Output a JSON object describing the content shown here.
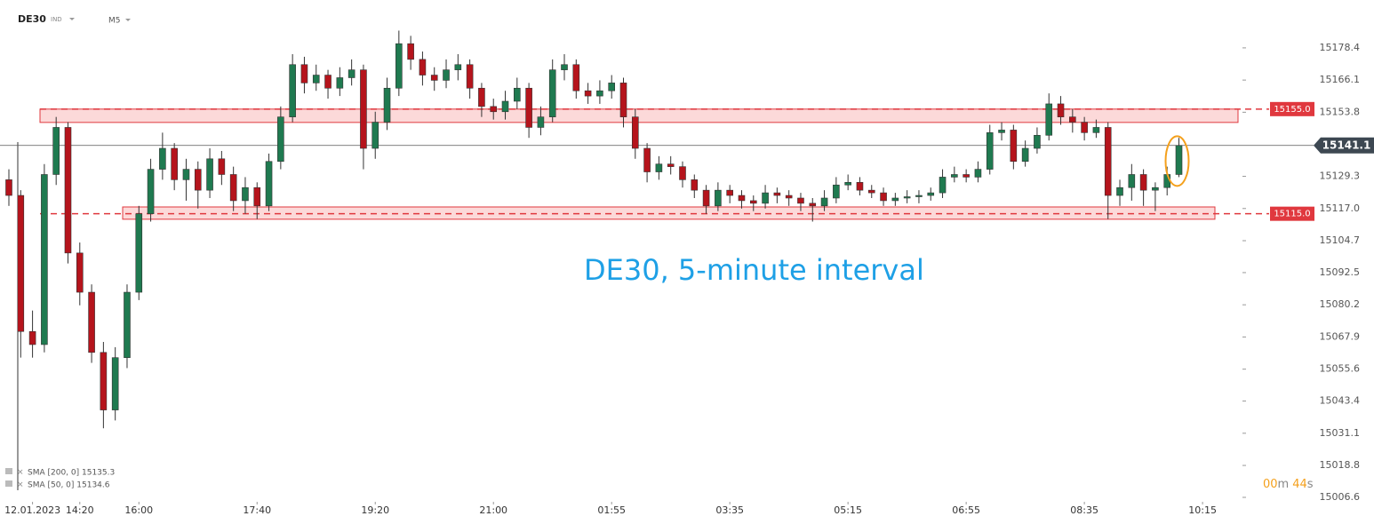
{
  "chart_data": {
    "type": "candlestick",
    "symbol": "DE30",
    "market": "IND",
    "timeframe": "M5",
    "annotation": "DE30, 5-minute interval",
    "indicators": [
      "SMA  [200,  0]  15135.3",
      "SMA  [50,  0]  15134.6"
    ],
    "timer": [
      "00",
      "m",
      "44",
      "s"
    ],
    "up_color": "#1f7a50",
    "down_color": "#b5141c",
    "level_color": "#e0383e",
    "ylim": [
      15004.9,
      15195.0
    ],
    "yticks": [
      15178.4,
      15166.1,
      15153.8,
      15129.3,
      {
        "value": 15117.0,
        "label": "15117.0"
      },
      15104.7,
      15092.5,
      15080.2,
      15067.9,
      15055.6,
      15043.4,
      15031.1,
      15018.8,
      15006.6
    ],
    "xlim": [
      -0.15,
      104
    ],
    "xticks": [
      {
        "value": 2,
        "label": "12.01.2023"
      },
      {
        "value": 6,
        "label": "14:20"
      },
      {
        "value": 11,
        "label": "16:00"
      },
      {
        "value": 21,
        "label": "17:40"
      },
      {
        "value": 31,
        "label": "19:20"
      },
      {
        "value": 41,
        "label": "21:00"
      },
      {
        "value": 51,
        "label": "01:55"
      },
      {
        "value": 61,
        "label": "03:35"
      },
      {
        "value": 71,
        "label": "05:15"
      },
      {
        "value": 81,
        "label": "06:55"
      },
      {
        "value": 91,
        "label": "08:35"
      },
      {
        "value": 101,
        "label": "10:15"
      }
    ],
    "last_price": {
      "value": 15141.1,
      "label": "15141.1"
    },
    "levels": [
      {
        "value": 15155.0,
        "label": "15155.0",
        "zone": [
          15149.9,
          15155.0
        ]
      },
      {
        "value": 15115.0,
        "label": "15115.0",
        "zone": [
          15112.9,
          15117.6
        ]
      }
    ],
    "candles": [
      [
        15128,
        15132,
        15118,
        15122
      ],
      [
        15122,
        15124,
        15060,
        15070
      ],
      [
        15070,
        15078,
        15060,
        15065
      ],
      [
        15065,
        15134,
        15062,
        15130
      ],
      [
        15130,
        15152,
        15126,
        15148
      ],
      [
        15148,
        15150,
        15096,
        15100
      ],
      [
        15100,
        15104,
        15080,
        15085
      ],
      [
        15085,
        15088,
        15058,
        15062
      ],
      [
        15062,
        15066,
        15033,
        15040
      ],
      [
        15040,
        15064,
        15036,
        15060
      ],
      [
        15060,
        15088,
        15056,
        15085
      ],
      [
        15085,
        15118,
        15082,
        15115
      ],
      [
        15115,
        15136,
        15112,
        15132
      ],
      [
        15132,
        15146,
        15128,
        15140
      ],
      [
        15140,
        15142,
        15124,
        15128
      ],
      [
        15128,
        15136,
        15120,
        15132
      ],
      [
        15132,
        15135,
        15117,
        15124
      ],
      [
        15124,
        15140,
        15121,
        15136
      ],
      [
        15136,
        15139,
        15126,
        15130
      ],
      [
        15130,
        15133,
        15116,
        15120
      ],
      [
        15120,
        15129,
        15115,
        15125
      ],
      [
        15125,
        15127,
        15113,
        15118
      ],
      [
        15118,
        15138,
        15116,
        15135
      ],
      [
        15135,
        15156,
        15132,
        15152
      ],
      [
        15152,
        15176,
        15150,
        15172
      ],
      [
        15172,
        15175,
        15161,
        15165
      ],
      [
        15165,
        15172,
        15162,
        15168
      ],
      [
        15168,
        15170,
        15159,
        15163
      ],
      [
        15163,
        15171,
        15160,
        15167
      ],
      [
        15167,
        15174,
        15164,
        15170
      ],
      [
        15170,
        15172,
        15132,
        15140
      ],
      [
        15140,
        15154,
        15136,
        15150
      ],
      [
        15150,
        15167,
        15147,
        15163
      ],
      [
        15163,
        15185,
        15160,
        15180
      ],
      [
        15180,
        15183,
        15170,
        15174
      ],
      [
        15174,
        15177,
        15164,
        15168
      ],
      [
        15168,
        15171,
        15162,
        15166
      ],
      [
        15166,
        15174,
        15163,
        15170
      ],
      [
        15170,
        15176,
        15166,
        15172
      ],
      [
        15172,
        15174,
        15159,
        15163
      ],
      [
        15163,
        15165,
        15152,
        15156
      ],
      [
        15156,
        15159,
        15151,
        15154
      ],
      [
        15154,
        15162,
        15151,
        15158
      ],
      [
        15158,
        15167,
        15155,
        15163
      ],
      [
        15163,
        15165,
        15144,
        15148
      ],
      [
        15148,
        15156,
        15145,
        15152
      ],
      [
        15152,
        15174,
        15150,
        15170
      ],
      [
        15170,
        15176,
        15166,
        15172
      ],
      [
        15172,
        15174,
        15159,
        15162
      ],
      [
        15162,
        15165,
        15157,
        15160
      ],
      [
        15160,
        15166,
        15157,
        15162
      ],
      [
        15162,
        15168,
        15159,
        15165
      ],
      [
        15165,
        15167,
        15148,
        15152
      ],
      [
        15152,
        15155,
        15136,
        15140
      ],
      [
        15140,
        15142,
        15127,
        15131
      ],
      [
        15131,
        15137,
        15128,
        15134
      ],
      [
        15134,
        15137,
        15130,
        15133
      ],
      [
        15133,
        15135,
        15125,
        15128
      ],
      [
        15128,
        15130,
        15121,
        15124
      ],
      [
        15124,
        15126,
        15115,
        15118
      ],
      [
        15118,
        15127,
        15116,
        15124
      ],
      [
        15124,
        15126,
        15119,
        15122
      ],
      [
        15122,
        15124,
        15117,
        15120
      ],
      [
        15120,
        15122,
        15116,
        15119
      ],
      [
        15119,
        15126,
        15117,
        15123
      ],
      [
        15123,
        15125,
        15119,
        15122
      ],
      [
        15122,
        15124,
        15118,
        15121
      ],
      [
        15121,
        15123,
        15116,
        15119
      ],
      [
        15119,
        15121,
        15112,
        15118
      ],
      [
        15118,
        15124,
        15116,
        15121
      ],
      [
        15121,
        15129,
        15119,
        15126
      ],
      [
        15126,
        15130,
        15124,
        15127
      ],
      [
        15127,
        15129,
        15122,
        15124
      ],
      [
        15124,
        15126,
        15121,
        15123
      ],
      [
        15123,
        15125,
        15118,
        15120
      ],
      [
        15120,
        15123,
        15118,
        15121
      ],
      [
        15121,
        15124,
        15119,
        15121.5
      ],
      [
        15121.5,
        15124,
        15119,
        15122
      ],
      [
        15122,
        15125,
        15120,
        15123
      ],
      [
        15123,
        15132,
        15121,
        15129
      ],
      [
        15129,
        15133,
        15127,
        15130
      ],
      [
        15130,
        15132,
        15127,
        15129
      ],
      [
        15129,
        15135,
        15127,
        15132
      ],
      [
        15132,
        15149,
        15130,
        15146
      ],
      [
        15146,
        15150,
        15143,
        15147
      ],
      [
        15147,
        15149,
        15132,
        15135
      ],
      [
        15135,
        15143,
        15133,
        15140
      ],
      [
        15140,
        15148,
        15138,
        15145
      ],
      [
        15145,
        15161,
        15143,
        15157
      ],
      [
        15157,
        15160,
        15149,
        15152
      ],
      [
        15152,
        15155,
        15146,
        15150
      ],
      [
        15150,
        15152,
        15143,
        15146
      ],
      [
        15146,
        15151,
        15144,
        15148
      ],
      [
        15148,
        15150,
        15113,
        15122
      ],
      [
        15122,
        15128,
        15118,
        15125
      ],
      [
        15125,
        15134,
        15120,
        15130
      ],
      [
        15130,
        15132,
        15118,
        15124
      ],
      [
        15124,
        15127,
        15116,
        15125
      ],
      [
        15125,
        15133,
        15122,
        15130
      ],
      [
        15130,
        15144,
        15129,
        15141.1
      ]
    ]
  }
}
